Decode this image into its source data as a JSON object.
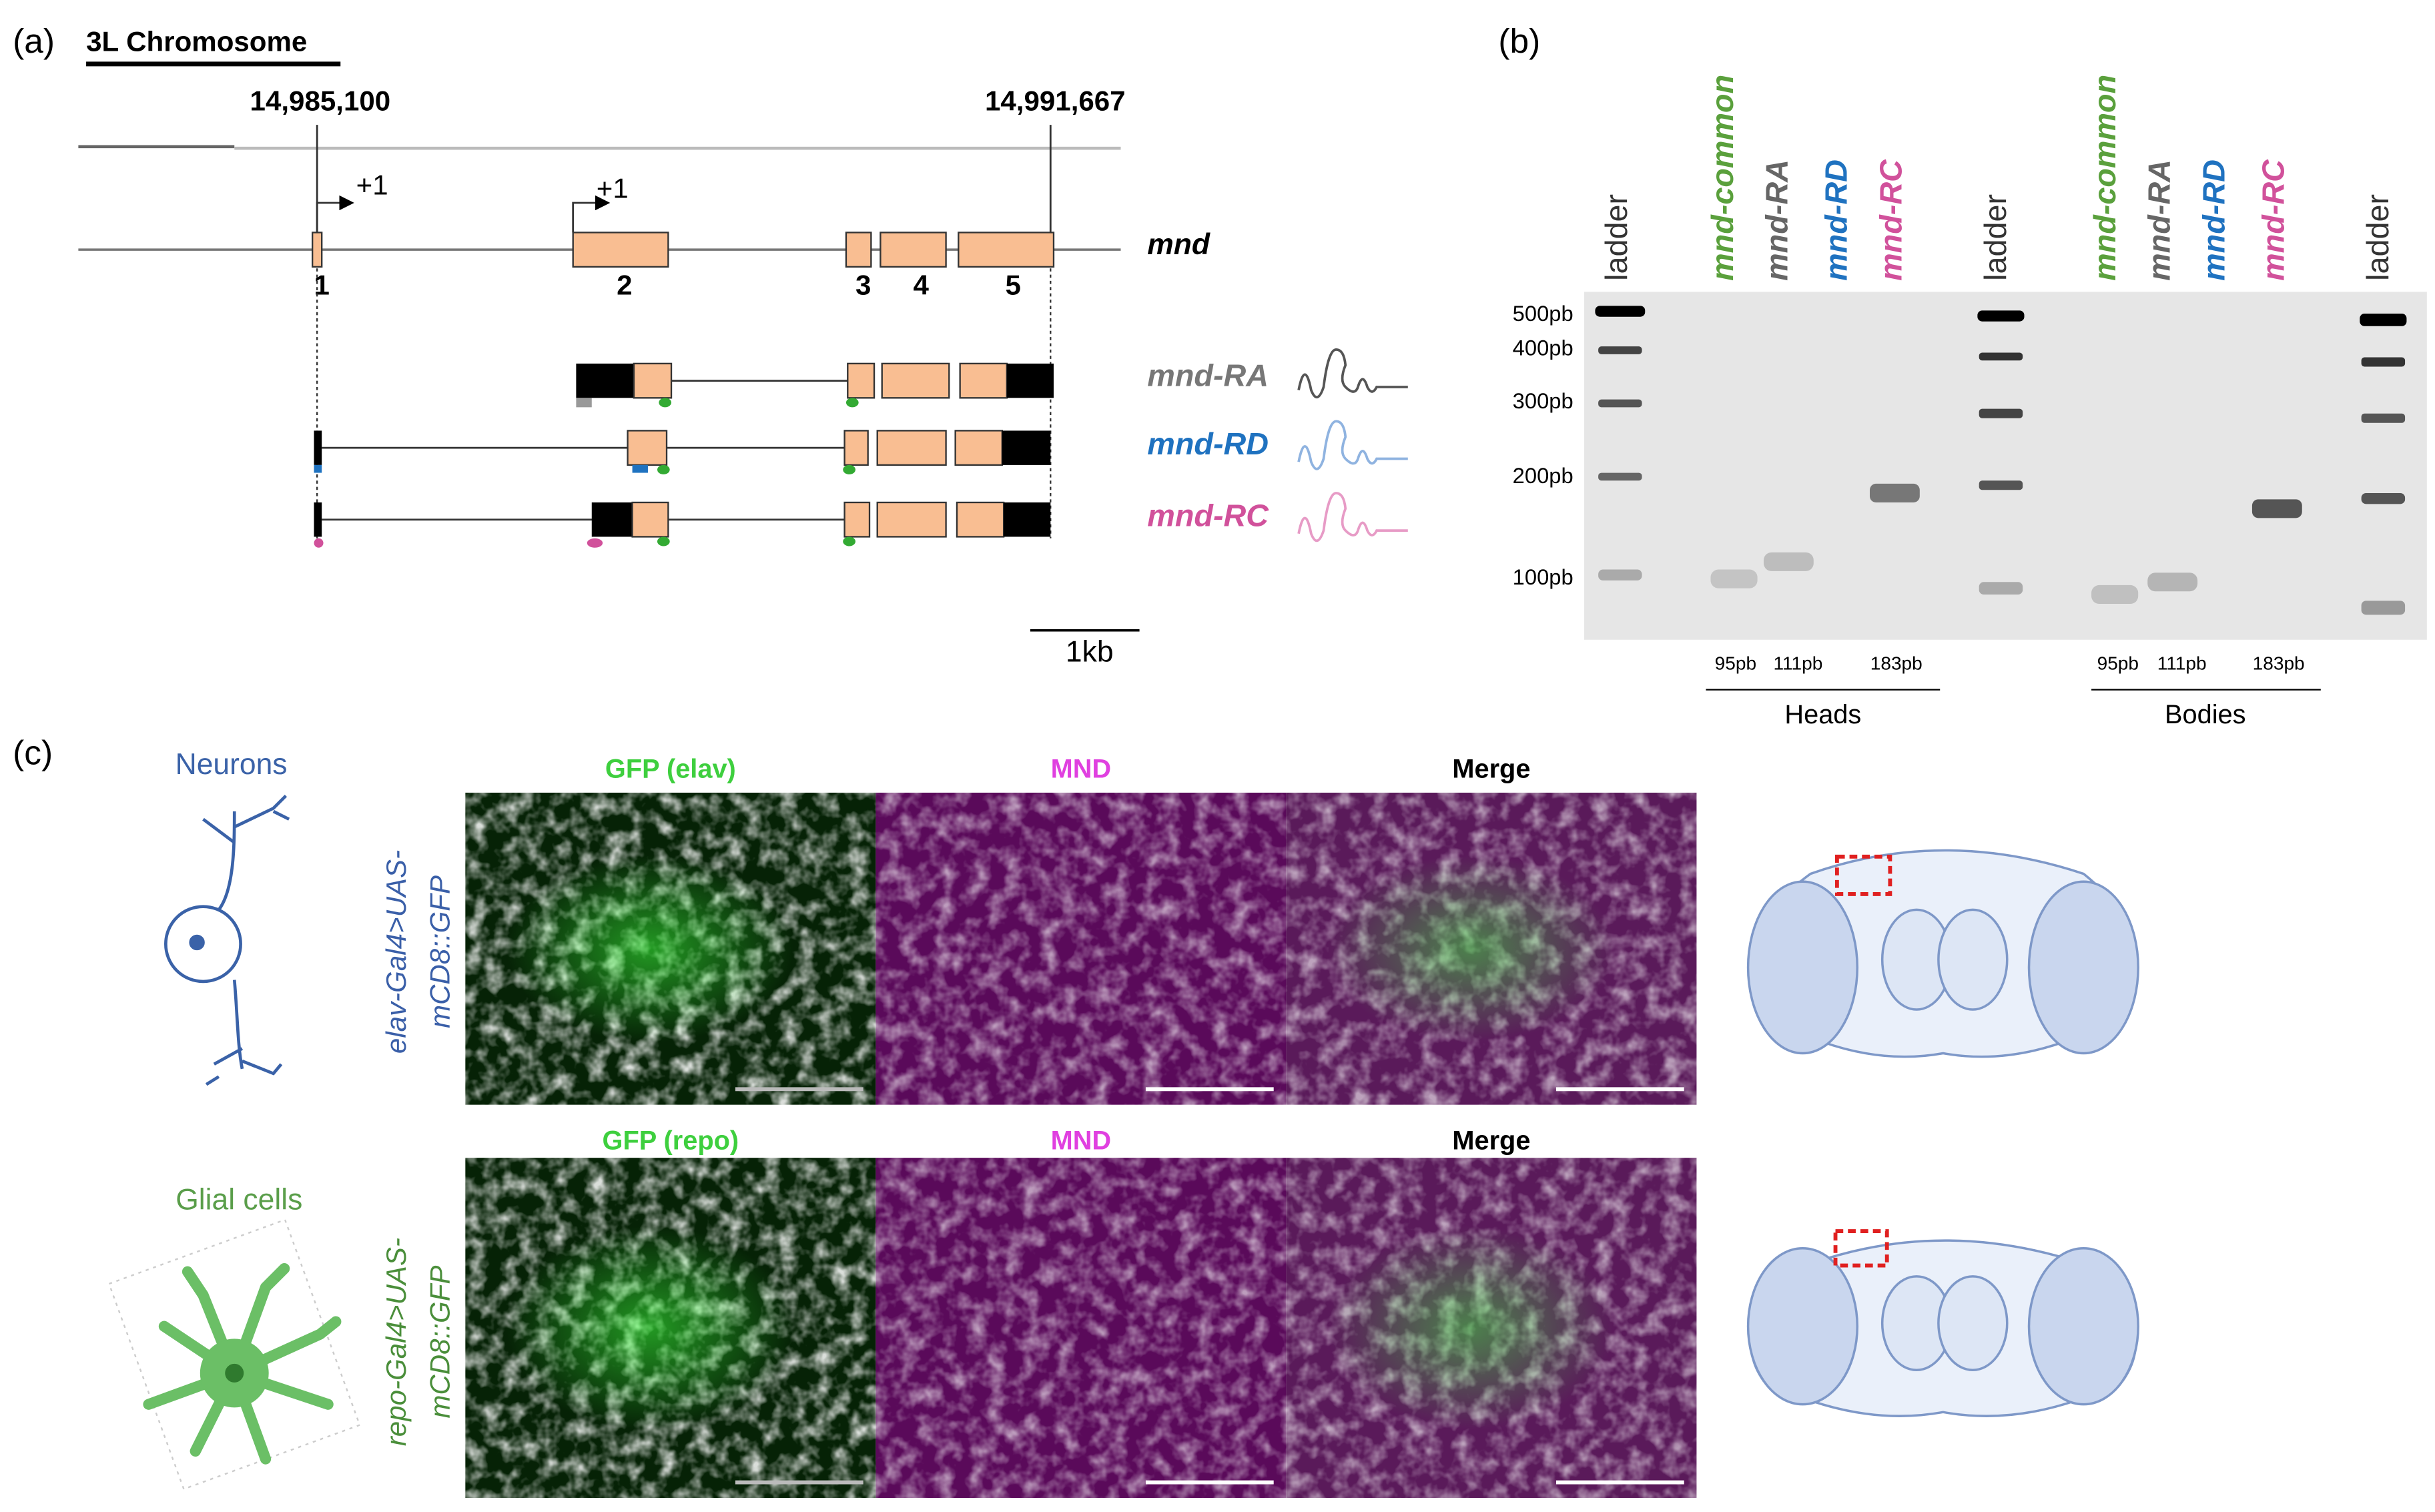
{
  "panel_a": {
    "label": "(a)",
    "chromosome": "3L Chromosome",
    "coords": [
      "14,985,100",
      "14,991,667"
    ],
    "tss": [
      "+1",
      "+1"
    ],
    "gene": "mnd",
    "exons": [
      "1",
      "2",
      "3",
      "4",
      "5"
    ],
    "transcripts": [
      "mnd-RA",
      "mnd-RD",
      "mnd-RC"
    ],
    "scale": "1kb"
  },
  "panel_b": {
    "label": "(b)",
    "lanes": [
      "ladder",
      "mnd-common",
      "mnd-RA",
      "mnd-RD",
      "mnd-RC",
      "ladder",
      "mnd-common",
      "mnd-RA",
      "mnd-RD",
      "mnd-RC",
      "ladder"
    ],
    "ladder_sizes": [
      "500pb",
      "400pb",
      "300pb",
      "200pb",
      "100pb"
    ],
    "heads_sizes": [
      "95pb",
      "111pb",
      "183pb"
    ],
    "bodies_sizes": [
      "95pb",
      "111pb",
      "183pb"
    ],
    "groups": [
      "Heads",
      "Bodies"
    ]
  },
  "panel_c": {
    "label": "(c)",
    "rows": [
      {
        "cell": "Neurons",
        "driver": [
          "elav-Gal4>UAS-",
          "mCD8::GFP"
        ],
        "titles": [
          "GFP (elav)",
          "MND",
          "Merge"
        ]
      },
      {
        "cell": "Glial cells",
        "driver": [
          "repo-Gal4>UAS-",
          "mCD8::GFP"
        ],
        "titles": [
          "GFP (repo)",
          "MND",
          "Merge"
        ]
      }
    ]
  }
}
